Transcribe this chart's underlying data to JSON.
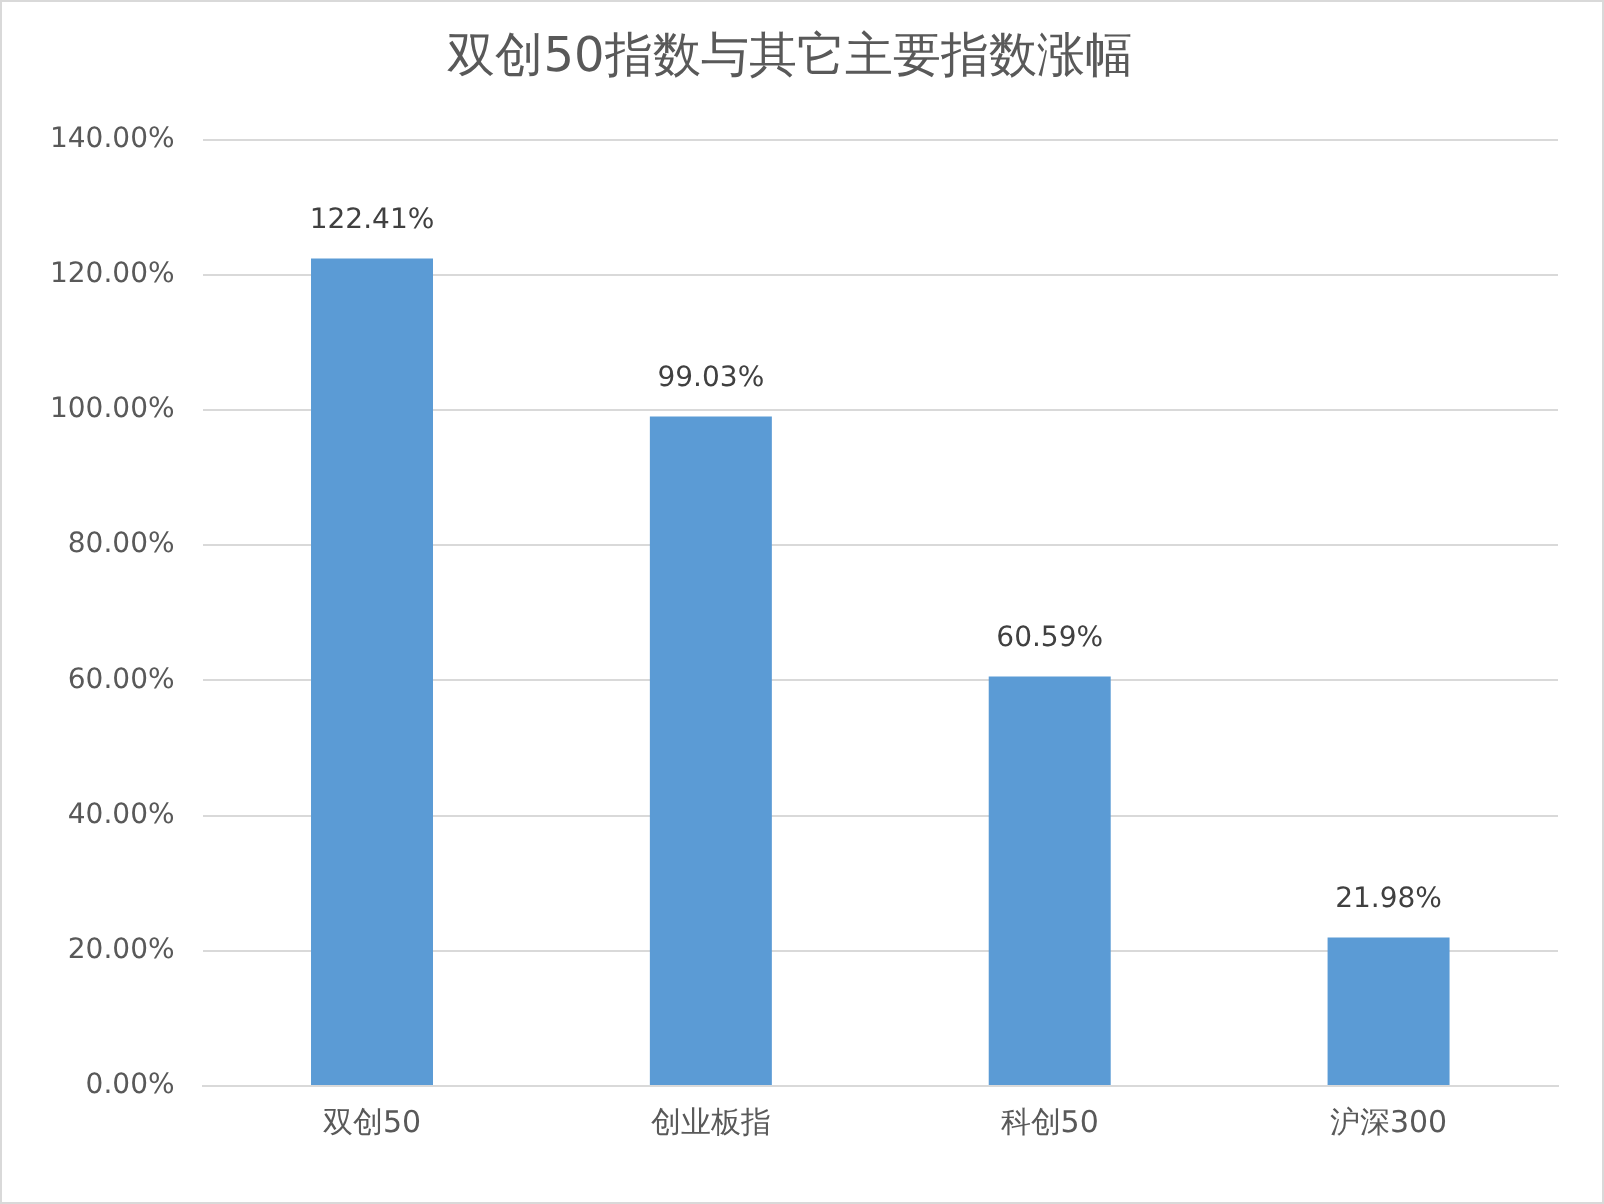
{
  "chart_data": {
    "type": "bar",
    "title": "双创50指数与其它主要指数涨幅",
    "categories": [
      "双创50",
      "创业板指",
      "科创50",
      "沪深300"
    ],
    "values": [
      122.41,
      99.03,
      60.59,
      21.98
    ],
    "value_labels": [
      "122.41%",
      "99.03%",
      "60.59%",
      "21.98%"
    ],
    "color": "#5b9bd5",
    "ylim": [
      0,
      140
    ],
    "yticks": [
      {
        "value": 0,
        "label": "0.00%"
      },
      {
        "value": 20,
        "label": "20.00%"
      },
      {
        "value": 40,
        "label": "40.00%"
      },
      {
        "value": 60,
        "label": "60.00%"
      },
      {
        "value": 80,
        "label": "80.00%"
      },
      {
        "value": 100,
        "label": "100.00%"
      },
      {
        "value": 120,
        "label": "120.00%"
      },
      {
        "value": 140,
        "label": "140.00%"
      }
    ],
    "grid": "y"
  }
}
